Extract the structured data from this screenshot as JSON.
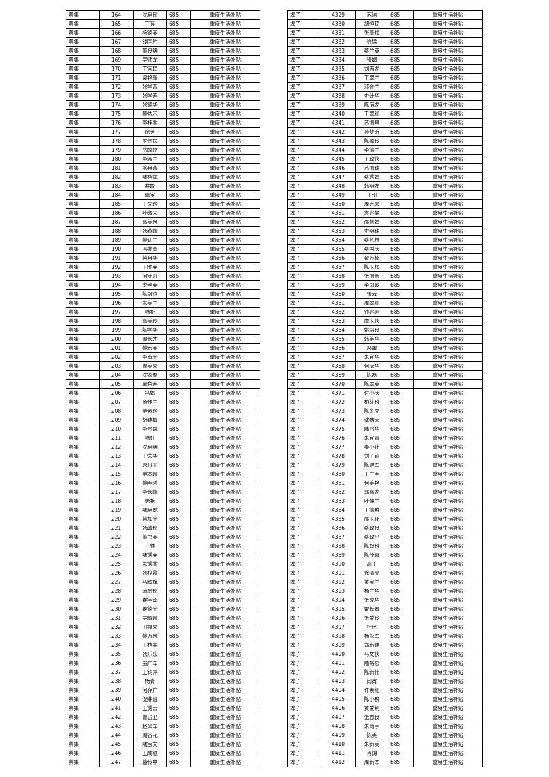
{
  "tables": [
    {
      "rows": [
        [
          "蔡集",
          "164",
          "沈启民",
          "685",
          "重度生活补贴"
        ],
        [
          "蔡集",
          "165",
          "王存",
          "685",
          "重度生活补贴"
        ],
        [
          "蔡集",
          "166",
          "杨德美",
          "685",
          "重度生活补贴"
        ],
        [
          "蔡集",
          "167",
          "钱国胜",
          "685",
          "重度生活补贴"
        ],
        [
          "蔡集",
          "168",
          "董良明",
          "685",
          "重度生活补贴"
        ],
        [
          "蔡集",
          "169",
          "吴师龙",
          "685",
          "重度生活补贴"
        ],
        [
          "蔡集",
          "170",
          "王宜联",
          "685",
          "重度生活补贴"
        ],
        [
          "蔡集",
          "171",
          "梁艳新",
          "685",
          "重度生活补贴"
        ],
        [
          "蔡集",
          "172",
          "张学高",
          "685",
          "重度生活补贴"
        ],
        [
          "蔡集",
          "173",
          "张学连",
          "685",
          "重度生活补贴"
        ],
        [
          "蔡集",
          "174",
          "张德华",
          "685",
          "重度生活补贴"
        ],
        [
          "蔡集",
          "175",
          "蔡侬芯",
          "685",
          "重度生活补贴"
        ],
        [
          "蔡集",
          "176",
          "李桂香",
          "685",
          "重度生活补贴"
        ],
        [
          "蔡集",
          "177",
          "徐芳",
          "685",
          "重度生活补贴"
        ],
        [
          "蔡集",
          "178",
          "罗金妹",
          "685",
          "重度生活补贴"
        ],
        [
          "蔡集",
          "179",
          "岳皎皎",
          "685",
          "重度生活补贴"
        ],
        [
          "蔡集",
          "180",
          "李淑兰",
          "685",
          "重度生活补贴"
        ],
        [
          "蔡集",
          "181",
          "盛冉燕",
          "685",
          "重度生活补贴"
        ],
        [
          "蔡集",
          "182",
          "陆裕斌",
          "685",
          "重度生活补贴"
        ],
        [
          "蔡集",
          "183",
          "井皎",
          "685",
          "重度生活补贴"
        ],
        [
          "蔡集",
          "184",
          "卓宝",
          "685",
          "重度生活补贴"
        ],
        [
          "蔡集",
          "185",
          "王先珍",
          "685",
          "重度生活补贴"
        ],
        [
          "蔡集",
          "186",
          "叶敬义",
          "685",
          "重度生活补贴"
        ],
        [
          "蔡集",
          "187",
          "高美忠",
          "685",
          "重度生活补贴"
        ],
        [
          "蔡集",
          "188",
          "张燕峰",
          "685",
          "重度生活补贴"
        ],
        [
          "蔡集",
          "189",
          "蔡训兰",
          "685",
          "重度生活补贴"
        ],
        [
          "蔡集",
          "190",
          "冯兆贵",
          "685",
          "重度生活补贴"
        ],
        [
          "蔡集",
          "191",
          "蒋月华",
          "685",
          "重度生活补贴"
        ],
        [
          "蔡集",
          "192",
          "王胜英",
          "685",
          "重度生活补贴"
        ],
        [
          "蔡集",
          "193",
          "何守莉",
          "685",
          "重度生活补贴"
        ],
        [
          "蔡集",
          "194",
          "戈孝英",
          "685",
          "重度生活补贴"
        ],
        [
          "蔡集",
          "195",
          "陈冠铮",
          "685",
          "重度生活补贴"
        ],
        [
          "蔡集",
          "196",
          "朱美兰",
          "685",
          "重度生活补贴"
        ],
        [
          "蔡集",
          "197",
          "陆松",
          "685",
          "重度生活补贴"
        ],
        [
          "蔡集",
          "198",
          "高美玲",
          "685",
          "重度生活补贴"
        ],
        [
          "蔡集",
          "199",
          "陈学华",
          "685",
          "重度生活补贴"
        ],
        [
          "蔡集",
          "200",
          "周长才",
          "685",
          "重度生活补贴"
        ],
        [
          "蔡集",
          "201",
          "蔡宏美",
          "685",
          "重度生活补贴"
        ],
        [
          "蔡集",
          "202",
          "李有金",
          "685",
          "重度生活补贴"
        ],
        [
          "蔡集",
          "203",
          "曹美荣",
          "685",
          "重度生活补贴"
        ],
        [
          "蔡集",
          "204",
          "沈家聚",
          "685",
          "重度生活补贴"
        ],
        [
          "蔡集",
          "205",
          "單角连",
          "685",
          "重度生活补贴"
        ],
        [
          "蔡集",
          "206",
          "冯娟",
          "685",
          "重度生活补贴"
        ],
        [
          "蔡集",
          "207",
          "商作兰",
          "685",
          "重度生活补贴"
        ],
        [
          "蔡集",
          "208",
          "樊素珍",
          "685",
          "重度生活补贴"
        ],
        [
          "蔡集",
          "209",
          "胡建梅",
          "685",
          "重度生活补贴"
        ],
        [
          "蔡集",
          "210",
          "李金凤",
          "685",
          "重度生活补贴"
        ],
        [
          "蔡集",
          "211",
          "陆虹",
          "685",
          "重度生活补贴"
        ],
        [
          "蔡集",
          "212",
          "沈启明",
          "685",
          "重度生活补贴"
        ],
        [
          "蔡集",
          "213",
          "王荣华",
          "685",
          "重度生活补贴"
        ],
        [
          "蔡集",
          "214",
          "唐舟平",
          "685",
          "重度生活补贴"
        ],
        [
          "蔡集",
          "215",
          "樊本超",
          "685",
          "重度生活补贴"
        ],
        [
          "蔡集",
          "216",
          "蔡明哲",
          "685",
          "重度生活补贴"
        ],
        [
          "蔡集",
          "217",
          "李长峰",
          "685",
          "重度生活补贴"
        ],
        [
          "蔡集",
          "218",
          "唐艳",
          "685",
          "重度生活补贴"
        ],
        [
          "蔡集",
          "219",
          "陆启威",
          "685",
          "重度生活补贴"
        ],
        [
          "蔡集",
          "220",
          "蒋加金",
          "685",
          "重度生活补贴"
        ],
        [
          "蔡集",
          "221",
          "张政侠",
          "685",
          "重度生活补贴"
        ],
        [
          "蔡集",
          "222",
          "董书美",
          "685",
          "重度生活补贴"
        ],
        [
          "蔡集",
          "223",
          "王帅",
          "685",
          "重度生活补贴"
        ],
        [
          "蔡集",
          "224",
          "陆秀英",
          "685",
          "重度生活补贴"
        ],
        [
          "蔡集",
          "225",
          "朱秀香",
          "685",
          "重度生活补贴"
        ],
        [
          "蔡集",
          "226",
          "张梓晨",
          "685",
          "重度生活补贴"
        ],
        [
          "蔡集",
          "227",
          "马辉旗",
          "685",
          "重度生活补贴"
        ],
        [
          "蔡集",
          "228",
          "琉恩侠",
          "685",
          "重度生活补贴"
        ],
        [
          "蔡集",
          "229",
          "娄宇泽",
          "685",
          "重度生活补贴"
        ],
        [
          "蔡集",
          "230",
          "姜德金",
          "685",
          "重度生活补贴"
        ],
        [
          "蔡集",
          "231",
          "吴耀超",
          "685",
          "重度生活补贴"
        ],
        [
          "蔡集",
          "232",
          "田禄荣",
          "685",
          "重度生活补贴"
        ],
        [
          "蔡集",
          "233",
          "蔡万忠",
          "685",
          "重度生活补贴"
        ],
        [
          "蔡集",
          "234",
          "王桔赛",
          "685",
          "重度生活补贴"
        ],
        [
          "蔡集",
          "235",
          "张乐乐",
          "685",
          "重度生活补贴"
        ],
        [
          "蔡集",
          "236",
          "孟广军",
          "685",
          "重度生活补贴"
        ],
        [
          "蔡集",
          "237",
          "王钧萍",
          "685",
          "重度生活补贴"
        ],
        [
          "蔡集",
          "238",
          "杨青",
          "685",
          "重度生活补贴"
        ],
        [
          "蔡集",
          "239",
          "何存广",
          "685",
          "重度生活补贴"
        ],
        [
          "蔡集",
          "240",
          "倪鼎山",
          "685",
          "重度生活补贴"
        ],
        [
          "蔡集",
          "241",
          "王秀云",
          "685",
          "重度生活补贴"
        ],
        [
          "蔡集",
          "242",
          "曹占卫",
          "685",
          "重度生活补贴"
        ],
        [
          "蔡集",
          "243",
          "赵义军",
          "685",
          "重度生活补贴"
        ],
        [
          "蔡集",
          "244",
          "周谷花",
          "685",
          "重度生活补贴"
        ],
        [
          "蔡集",
          "245",
          "陆宝文",
          "685",
          "重度生活补贴"
        ],
        [
          "蔡集",
          "246",
          "王成银",
          "685",
          "重度生活补贴"
        ],
        [
          "蔡集",
          "247",
          "葛传中",
          "685",
          "重度生活补贴"
        ]
      ]
    },
    {
      "rows": [
        [
          "埠子",
          "4329",
          "苏洁",
          "685",
          "重度生活补贴"
        ],
        [
          "埠子",
          "4330",
          "胡恒琼",
          "685",
          "重度生活补贴"
        ],
        [
          "埠子",
          "4331",
          "张贵梅",
          "685",
          "重度生活补贴"
        ],
        [
          "埠子",
          "4332",
          "徐猛",
          "685",
          "重度生活补贴"
        ],
        [
          "埠子",
          "4333",
          "蔡兰英",
          "685",
          "重度生活补贴"
        ],
        [
          "埠子",
          "4334",
          "张娟",
          "685",
          "重度生活补贴"
        ],
        [
          "埠子",
          "4335",
          "刘丙龙",
          "685",
          "重度生活补贴"
        ],
        [
          "埠子",
          "4336",
          "王翠兰",
          "685",
          "重度生活补贴"
        ],
        [
          "埠子",
          "4337",
          "邓金兰",
          "685",
          "重度生活补贴"
        ],
        [
          "埠子",
          "4338",
          "史计华",
          "685",
          "重度生活补贴"
        ],
        [
          "埠子",
          "4339",
          "陈佰龙",
          "685",
          "重度生活补贴"
        ],
        [
          "埠子",
          "4340",
          "王翠红",
          "685",
          "重度生活补贴"
        ],
        [
          "埠子",
          "4341",
          "苏振昌",
          "685",
          "重度生活补贴"
        ],
        [
          "埠子",
          "4342",
          "孙梦昕",
          "685",
          "重度生活补贴"
        ],
        [
          "埠子",
          "4343",
          "陈顺玲",
          "685",
          "重度生活补贴"
        ],
        [
          "埠子",
          "4344",
          "李德兰",
          "685",
          "重度生活补贴"
        ],
        [
          "埠子",
          "4345",
          "王政侠",
          "685",
          "重度生活补贴"
        ],
        [
          "埠子",
          "4346",
          "苏振球",
          "685",
          "重度生活补贴"
        ],
        [
          "埠子",
          "4347",
          "蔡秀娟",
          "685",
          "重度生活补贴"
        ],
        [
          "埠子",
          "4348",
          "韩明友",
          "685",
          "重度生活补贴"
        ],
        [
          "埠子",
          "4349",
          "王引",
          "685",
          "重度生活补贴"
        ],
        [
          "埠子",
          "4350",
          "周克会",
          "685",
          "重度生活补贴"
        ],
        [
          "埠子",
          "4351",
          "袁兆静",
          "685",
          "重度生活补贴"
        ],
        [
          "埠子",
          "4352",
          "邵慧娟",
          "685",
          "重度生活补贴"
        ],
        [
          "埠子",
          "4353",
          "史明珠",
          "685",
          "重度生活补贴"
        ],
        [
          "埠子",
          "4354",
          "蔡艺林",
          "685",
          "重度生活补贴"
        ],
        [
          "埠子",
          "4355",
          "蔡国庆",
          "685",
          "重度生活补贴"
        ],
        [
          "埠子",
          "4356",
          "翟万楠",
          "685",
          "重度生活补贴"
        ],
        [
          "埠子",
          "4357",
          "陈玉梅",
          "685",
          "重度生活补贴"
        ],
        [
          "埠子",
          "4358",
          "张振新",
          "685",
          "重度生活补贴"
        ],
        [
          "埠子",
          "4359",
          "李凤岭",
          "685",
          "重度生活补贴"
        ],
        [
          "埠子",
          "4360",
          "张云",
          "685",
          "重度生活补贴"
        ],
        [
          "埠子",
          "4361",
          "周翠红",
          "685",
          "重度生活补贴"
        ],
        [
          "埠子",
          "4362",
          "钱兆刚",
          "685",
          "重度生活补贴"
        ],
        [
          "埠子",
          "4363",
          "虞玉侠",
          "685",
          "重度生活补贴"
        ],
        [
          "埠子",
          "4364",
          "姚培良",
          "685",
          "重度生活补贴"
        ],
        [
          "埠子",
          "4365",
          "韩美华",
          "685",
          "重度生活补贴"
        ],
        [
          "埠子",
          "4366",
          "冯雷",
          "685",
          "重度生活补贴"
        ],
        [
          "埠子",
          "4367",
          "朱宜华",
          "685",
          "重度生活补贴"
        ],
        [
          "埠子",
          "4368",
          "何庆华",
          "685",
          "重度生活补贴"
        ],
        [
          "埠子",
          "4369",
          "陈磊",
          "685",
          "重度生活补贴"
        ],
        [
          "埠子",
          "4370",
          "陈翠英",
          "685",
          "重度生活补贴"
        ],
        [
          "埠子",
          "4371",
          "付小庆",
          "685",
          "重度生活补贴"
        ],
        [
          "埠子",
          "4372",
          "柏芬科",
          "685",
          "重度生活补贴"
        ],
        [
          "埠子",
          "4373",
          "陈冬立",
          "685",
          "重度生活补贴"
        ],
        [
          "埠子",
          "4374",
          "沈皓天",
          "685",
          "重度生活补贴"
        ],
        [
          "埠子",
          "4375",
          "陆召华",
          "685",
          "重度生活补贴"
        ],
        [
          "埠子",
          "4376",
          "朱宜富",
          "685",
          "重度生活补贴"
        ],
        [
          "埠子",
          "4377",
          "秦小伟",
          "685",
          "重度生活补贴"
        ],
        [
          "埠子",
          "4378",
          "刘子钰",
          "685",
          "重度生活补贴"
        ],
        [
          "埠子",
          "4379",
          "陈建军",
          "685",
          "重度生活补贴"
        ],
        [
          "埠子",
          "4380",
          "王广明",
          "685",
          "重度生活补贴"
        ],
        [
          "埠子",
          "4381",
          "何美艳",
          "685",
          "重度生活补贴"
        ],
        [
          "埠子",
          "4382",
          "郭喜龙",
          "685",
          "重度生活补贴"
        ],
        [
          "埠子",
          "4383",
          "叶静兰",
          "685",
          "重度生活补贴"
        ],
        [
          "埠子",
          "4384",
          "王德群",
          "685",
          "重度生活补贴"
        ],
        [
          "埠子",
          "4385",
          "邵玉环",
          "685",
          "重度生活补贴"
        ],
        [
          "埠子",
          "4386",
          "蔡政良",
          "685",
          "重度生活补贴"
        ],
        [
          "埠子",
          "4387",
          "蔡政平",
          "685",
          "重度生活补贴"
        ],
        [
          "埠子",
          "4388",
          "陈智科",
          "685",
          "重度生活补贴"
        ],
        [
          "埠子",
          "4389",
          "陈茂喜",
          "685",
          "重度生活补贴"
        ],
        [
          "埠子",
          "4390",
          "高千",
          "685",
          "重度生活补贴"
        ],
        [
          "埠子",
          "4391",
          "徐清亮",
          "685",
          "重度生活补贴"
        ],
        [
          "埠子",
          "4392",
          "黄宝兰",
          "685",
          "重度生活补贴"
        ],
        [
          "埠子",
          "4393",
          "杨兰华",
          "685",
          "重度生活补贴"
        ],
        [
          "埠子",
          "4394",
          "张成华",
          "685",
          "重度生活补贴"
        ],
        [
          "埠子",
          "4395",
          "雷长春",
          "685",
          "重度生活补贴"
        ],
        [
          "埠子",
          "4396",
          "张爱玲",
          "685",
          "重度生活补贴"
        ],
        [
          "埠子",
          "4397",
          "杜民",
          "685",
          "重度生活补贴"
        ],
        [
          "埠子",
          "4398",
          "杨永军",
          "685",
          "重度生活补贴"
        ],
        [
          "埠子",
          "4399",
          "郑新建",
          "685",
          "重度生活补贴"
        ],
        [
          "埠子",
          "4400",
          "马文侠",
          "685",
          "重度生活补贴"
        ],
        [
          "埠子",
          "4401",
          "陆裕仑",
          "685",
          "重度生活补贴"
        ],
        [
          "埠子",
          "4402",
          "陈新伟",
          "685",
          "重度生活补贴"
        ],
        [
          "埠子",
          "4403",
          "闫宵",
          "685",
          "重度生活补贴"
        ],
        [
          "埠子",
          "4404",
          "许素红",
          "685",
          "重度生活补贴"
        ],
        [
          "埠子",
          "4405",
          "陈小群",
          "685",
          "重度生活补贴"
        ],
        [
          "埠子",
          "4406",
          "黄爱荆",
          "685",
          "重度生活补贴"
        ],
        [
          "埠子",
          "4407",
          "张志良",
          "685",
          "重度生活补贴"
        ],
        [
          "埠子",
          "4408",
          "朱尚宇",
          "685",
          "重度生活补贴"
        ],
        [
          "埠子",
          "4409",
          "陈美",
          "685",
          "重度生活补贴"
        ],
        [
          "埠子",
          "4410",
          "朱新美",
          "685",
          "重度生活补贴"
        ],
        [
          "埠子",
          "4411",
          "肖锦",
          "685",
          "重度生活补贴"
        ],
        [
          "埠子",
          "4412",
          "周新杰",
          "685",
          "重度生活补贴"
        ]
      ]
    }
  ]
}
